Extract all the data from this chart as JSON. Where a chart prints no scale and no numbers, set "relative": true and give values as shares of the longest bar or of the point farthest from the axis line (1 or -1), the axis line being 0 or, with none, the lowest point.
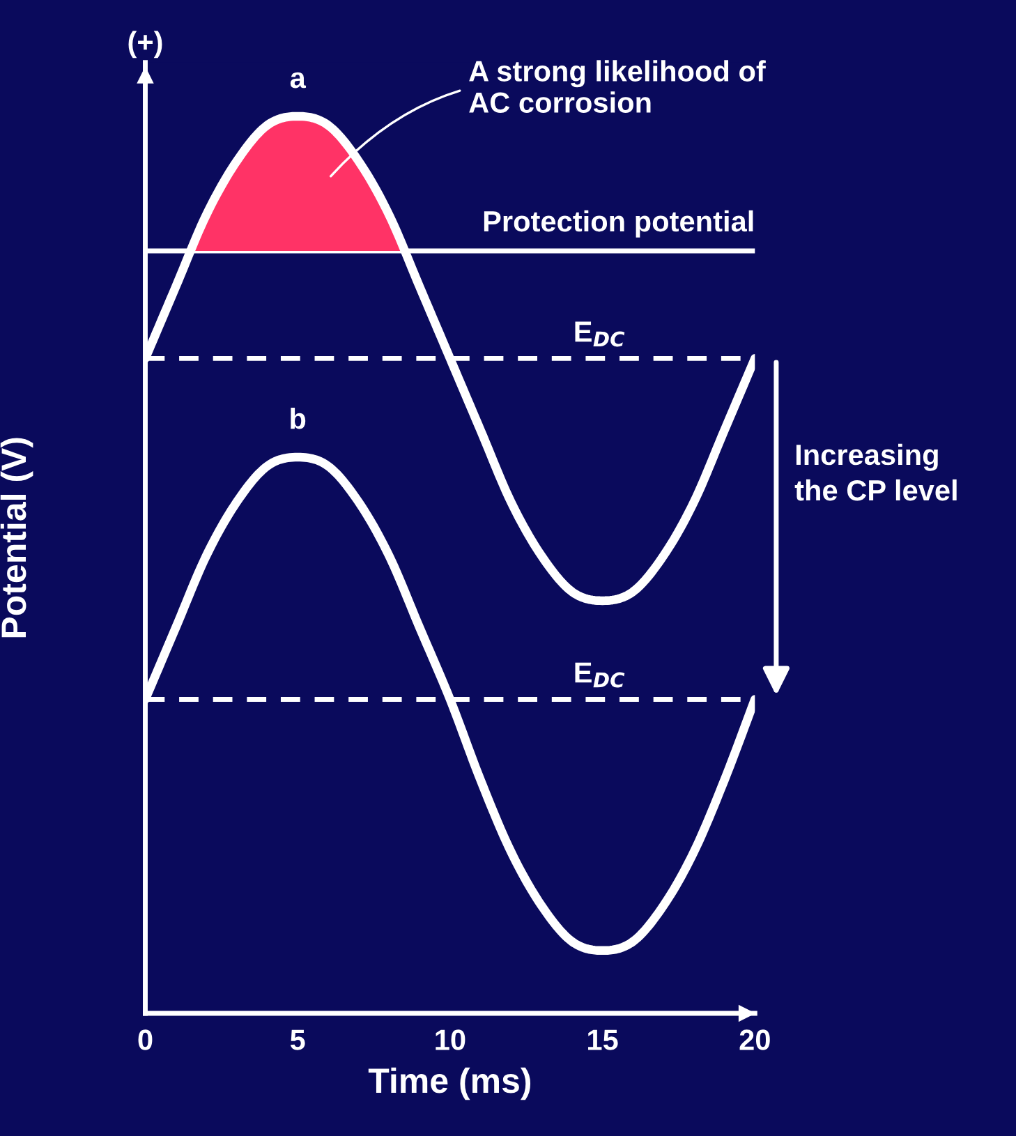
{
  "chart_data": {
    "type": "line",
    "relative": true,
    "xlabel": "Time (ms)",
    "ylabel": "Potential (V)",
    "x": [
      0,
      1,
      2,
      3,
      4,
      5,
      6,
      7,
      8,
      9,
      10,
      11,
      12,
      13,
      14,
      15,
      16,
      17,
      18,
      19,
      20
    ],
    "xlim": [
      0,
      20
    ],
    "xticks": [
      0,
      5,
      10,
      15,
      20
    ],
    "tick_labels": "x",
    "grid": false,
    "legend": false,
    "line_style": "solid",
    "marker": "none",
    "series": [
      {
        "name": "a",
        "color": "#ffffff",
        "values": [
          0.73,
          0.81,
          0.89,
          0.95,
          0.99,
          1.0,
          0.99,
          0.95,
          0.89,
          0.81,
          0.73,
          0.65,
          0.57,
          0.51,
          0.47,
          0.46,
          0.47,
          0.51,
          0.57,
          0.65,
          0.73
        ]
      },
      {
        "name": "b",
        "color": "#ffffff",
        "values": [
          0.35,
          0.43,
          0.51,
          0.57,
          0.61,
          0.62,
          0.61,
          0.57,
          0.51,
          0.43,
          0.35,
          0.26,
          0.18,
          0.12,
          0.08,
          0.07,
          0.08,
          0.12,
          0.18,
          0.26,
          0.35
        ]
      },
      {
        "type": "area",
        "color": "#ff3366",
        "x": [
          1.47,
          2,
          3,
          4,
          5,
          6,
          7,
          8,
          8.53
        ],
        "values": [
          0.85,
          0.89,
          0.95,
          0.99,
          1.0,
          0.99,
          0.95,
          0.89,
          0.85
        ]
      }
    ],
    "ref_lines": [
      {
        "axis": "y",
        "value": 0.85,
        "label": "Protection potential",
        "color": "#ffffff",
        "line_style": "solid"
      },
      {
        "axis": "y",
        "value": 0.73,
        "label": "E$_{DC}$",
        "color": "#ffffff",
        "line_style": "dashed"
      },
      {
        "axis": "y",
        "value": 0.35,
        "label": "E$_{DC}$",
        "color": "#ffffff",
        "line_style": "dashed"
      }
    ],
    "annotations": [
      "(+)",
      "A strong likelihood of\nAC corrosion",
      "Increasing\nthe CP level"
    ]
  }
}
